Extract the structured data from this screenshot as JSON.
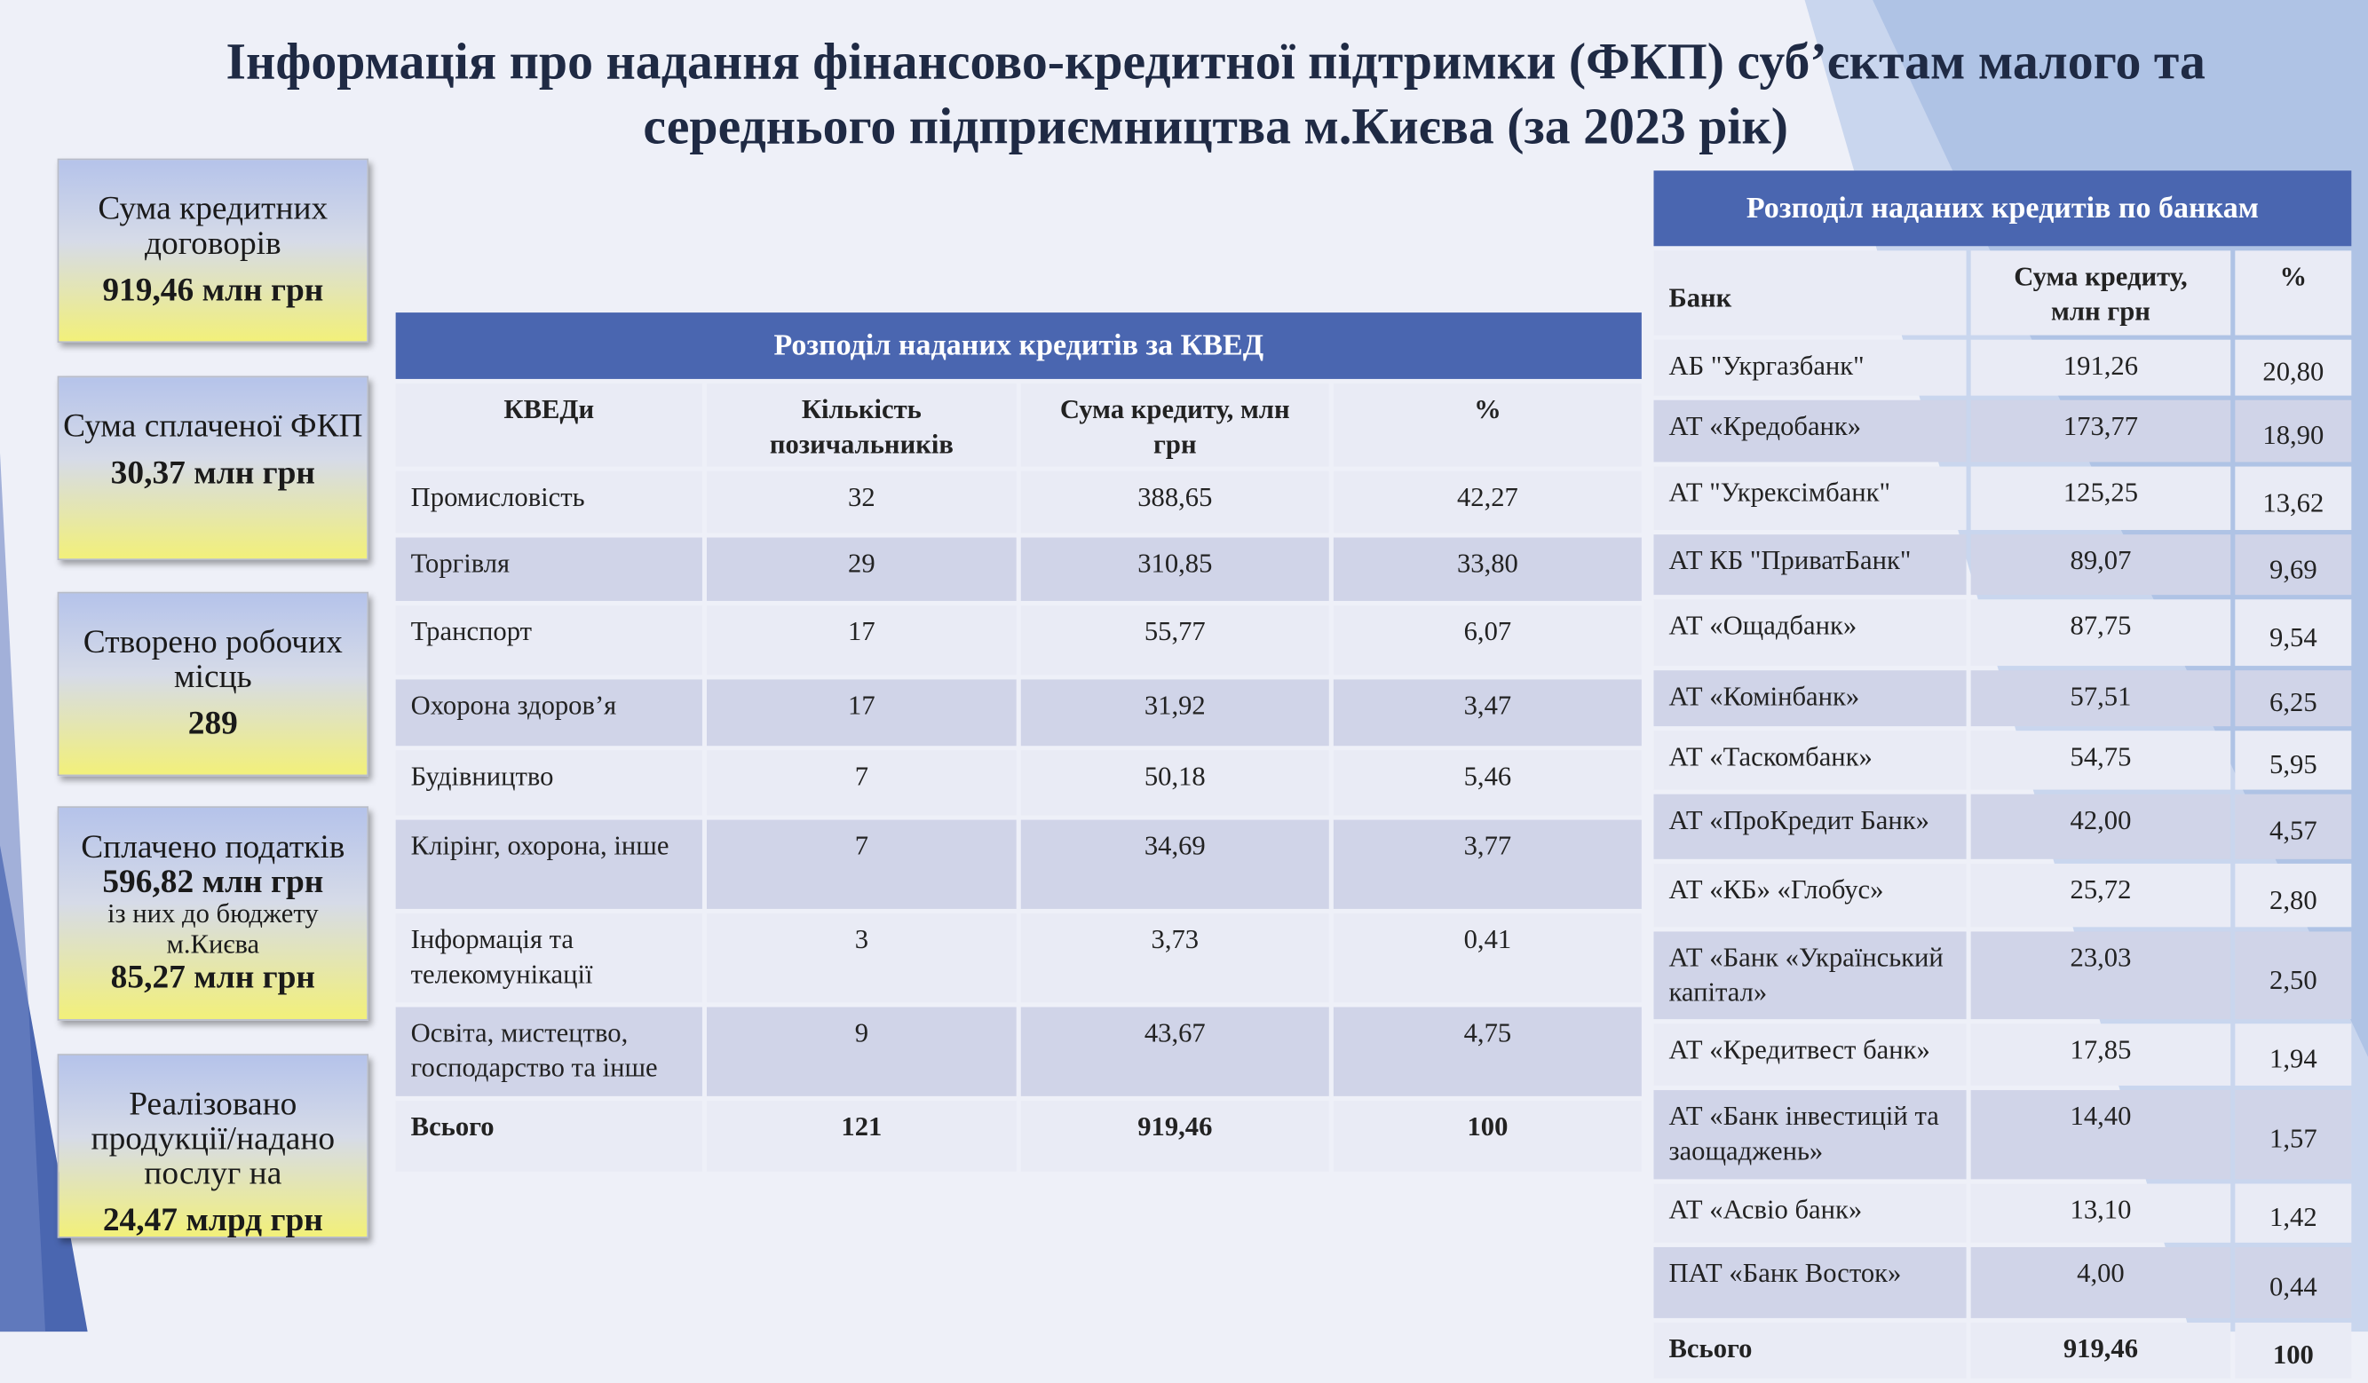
{
  "header": {
    "title": [
      "Інформація про надання фінансово-кредитної підтримки (ФКП) суб’єктам малого та",
      "середнього підприємництва м.Києва  (за 2023 рік)"
    ]
  },
  "cards": [
    {
      "label": "Сума кредитних договорів",
      "value": "919,46 млн грн"
    },
    {
      "label": "Сума сплаченої ФКП",
      "value": "30,37 млн грн"
    },
    {
      "label": "Створено робочих місць",
      "value": "289"
    },
    {
      "label": "Сплачено податків",
      "value": "596,82 млн грн",
      "sublabel": "із них до бюджету м.Києва",
      "subvalue": "85,27 млн грн"
    },
    {
      "label": "Реалізовано продукції/надано послуг на",
      "value": "24,47 млрд грн"
    }
  ],
  "kved_table": {
    "title": "Розподіл наданих кредитів за КВЕД",
    "columns": [
      "КВЕДи",
      "Кількість позичальників",
      "Сума кредиту, млн грн",
      "%"
    ],
    "rows": [
      [
        "Промисловість",
        "32",
        "388,65",
        "42,27"
      ],
      [
        "Торгівля",
        "29",
        "310,85",
        "33,80"
      ],
      [
        "Транспорт",
        "17",
        "55,77",
        "6,07"
      ],
      [
        "Охорона здоров’я",
        "17",
        "31,92",
        "3,47"
      ],
      [
        "Будівництво",
        "7",
        "50,18",
        "5,46"
      ],
      [
        "Клірінг, охорона, інше",
        "7",
        "34,69",
        "3,77"
      ],
      [
        "Інформація та телекомунікації",
        "3",
        "3,73",
        "0,41"
      ],
      [
        "Освіта, мистецтво, господарство та інше",
        "9",
        "43,67",
        "4,75"
      ]
    ],
    "total": [
      "Всього",
      "121",
      "919,46",
      "100"
    ]
  },
  "bank_table": {
    "title": "Розподіл наданих кредитів по банкам",
    "columns": [
      "Банк",
      "Сума кредиту, млн грн",
      "%"
    ],
    "rows": [
      [
        "АБ \"Укргазбанк\"",
        "191,26",
        "20,80"
      ],
      [
        "АТ «Кредобанк»",
        "173,77",
        "18,90"
      ],
      [
        "АТ \"Укрексімбанк\"",
        "125,25",
        "13,62"
      ],
      [
        "АТ КБ \"ПриватБанк\"",
        "89,07",
        "9,69"
      ],
      [
        "АТ «Ощадбанк»",
        "87,75",
        "9,54"
      ],
      [
        "АТ «Комінбанк»",
        "57,51",
        "6,25"
      ],
      [
        "АТ «Таскомбанк»",
        "54,75",
        "5,95"
      ],
      [
        "АТ «ПроКредит Банк»",
        "42,00",
        "4,57"
      ],
      [
        "АТ «КБ» «Глобус»",
        "25,72",
        "2,80"
      ],
      [
        "АТ «Банк «Український капітал»",
        "23,03",
        "2,50"
      ],
      [
        "АТ «Кредитвест банк»",
        "17,85",
        "1,94"
      ],
      [
        "АТ «Банк інвестицій та заощаджень»",
        "14,40",
        "1,57"
      ],
      [
        "АТ «Асвіо банк»",
        "13,10",
        "1,42"
      ],
      [
        "ПАТ «Банк Восток»",
        "4,00",
        "0,44"
      ]
    ],
    "total": [
      "Всього",
      "919,46",
      "100"
    ]
  }
}
